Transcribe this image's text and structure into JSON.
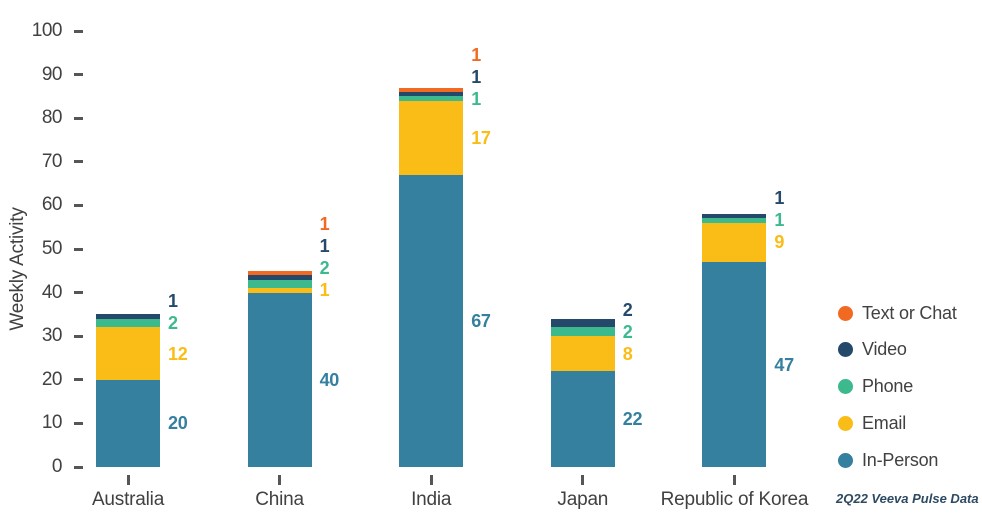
{
  "chart_data": {
    "type": "bar",
    "stacked": true,
    "title": "",
    "ylabel": "Weekly Activity",
    "xlabel": "",
    "ylim": [
      0,
      100
    ],
    "ytick_step": 10,
    "grid": false,
    "legend_position": "right",
    "categories": [
      "Australia",
      "China",
      "India",
      "Japan",
      "Republic of Korea"
    ],
    "series": [
      {
        "name": "In-Person",
        "color": "#35809F",
        "values": [
          20,
          40,
          67,
          22,
          47
        ]
      },
      {
        "name": "Email",
        "color": "#FABD17",
        "values": [
          12,
          1,
          17,
          8,
          9
        ]
      },
      {
        "name": "Phone",
        "color": "#3DB98E",
        "values": [
          2,
          2,
          1,
          2,
          1
        ]
      },
      {
        "name": "Video",
        "color": "#24496B",
        "values": [
          1,
          1,
          1,
          2,
          1
        ]
      },
      {
        "name": "Text or Chat",
        "color": "#F26A21",
        "values": [
          0,
          1,
          1,
          0,
          0
        ]
      }
    ]
  },
  "footnote": "2Q22 Veeva Pulse Data",
  "colors": {
    "axis_text": "#414042",
    "tick": "#55565A",
    "footnote": "#2E4A62",
    "background": "#FFFFFF"
  }
}
